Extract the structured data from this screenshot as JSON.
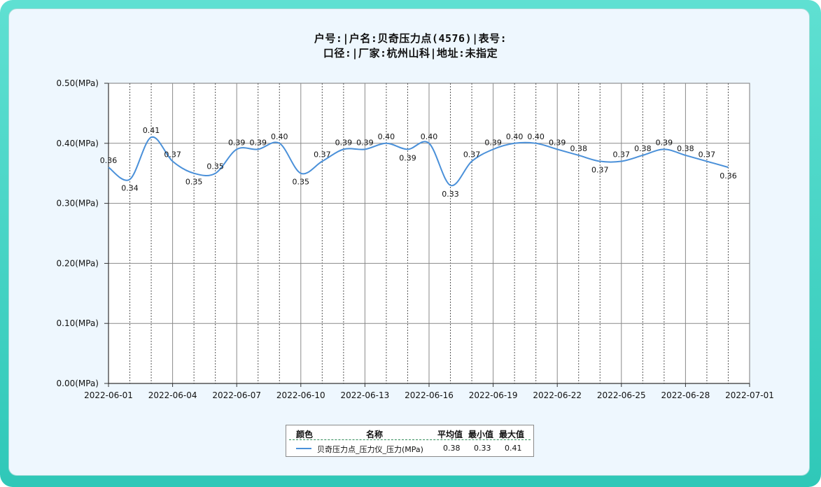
{
  "title_line1": "户号:|户名:贝奇压力点(4576)|表号:",
  "title_line2": "口径:|厂家:杭州山科|地址:未指定",
  "legend": {
    "headers": {
      "color": "颜色",
      "name": "名称",
      "avg": "平均值",
      "min": "最小值",
      "max": "最大值"
    },
    "rows": [
      {
        "name": "贝奇压力点_压力仪_压力(MPa)",
        "avg": "0.38",
        "min": "0.33",
        "max": "0.41",
        "color": "#4a90d9"
      }
    ]
  },
  "chart_data": {
    "type": "line",
    "xlim": [
      "2022-06-01",
      "2022-07-01"
    ],
    "ylim": [
      0.0,
      0.5
    ],
    "x_ticks": [
      "2022-06-01",
      "2022-06-04",
      "2022-06-07",
      "2022-06-10",
      "2022-06-13",
      "2022-06-16",
      "2022-06-19",
      "2022-06-22",
      "2022-06-25",
      "2022-06-28",
      "2022-07-01"
    ],
    "y_ticks": [
      "0.00(MPa)",
      "0.10(MPa)",
      "0.20(MPa)",
      "0.30(MPa)",
      "0.40(MPa)",
      "0.50(MPa)"
    ],
    "grid": true,
    "series": [
      {
        "name": "贝奇压力点_压力仪_压力(MPa)",
        "color": "#4a90d9",
        "x": [
          "2022-06-01",
          "2022-06-02",
          "2022-06-03",
          "2022-06-04",
          "2022-06-05",
          "2022-06-06",
          "2022-06-07",
          "2022-06-08",
          "2022-06-09",
          "2022-06-10",
          "2022-06-11",
          "2022-06-12",
          "2022-06-13",
          "2022-06-14",
          "2022-06-15",
          "2022-06-16",
          "2022-06-17",
          "2022-06-18",
          "2022-06-19",
          "2022-06-20",
          "2022-06-21",
          "2022-06-22",
          "2022-06-23",
          "2022-06-24",
          "2022-06-25",
          "2022-06-26",
          "2022-06-27",
          "2022-06-28",
          "2022-06-29",
          "2022-06-30"
        ],
        "y": [
          0.36,
          0.34,
          0.41,
          0.37,
          0.35,
          0.35,
          0.39,
          0.39,
          0.4,
          0.35,
          0.37,
          0.39,
          0.39,
          0.4,
          0.39,
          0.4,
          0.33,
          0.37,
          0.39,
          0.4,
          0.4,
          0.39,
          0.38,
          0.37,
          0.37,
          0.38,
          0.39,
          0.38,
          0.37,
          0.36
        ],
        "labels": [
          "0.36",
          "0.34",
          "0.41",
          "0.37",
          "0.35",
          "0.35",
          "0.39",
          "0.39",
          "0.40",
          "0.35",
          "0.37",
          "0.39",
          "0.39",
          "0.40",
          "0.39",
          "0.40",
          "0.33",
          "0.37",
          "0.39",
          "0.40",
          "0.40",
          "0.39",
          "0.38",
          "0.37",
          "0.37",
          "0.38",
          "0.39",
          "0.38",
          "0.37",
          "0.36"
        ]
      }
    ]
  }
}
